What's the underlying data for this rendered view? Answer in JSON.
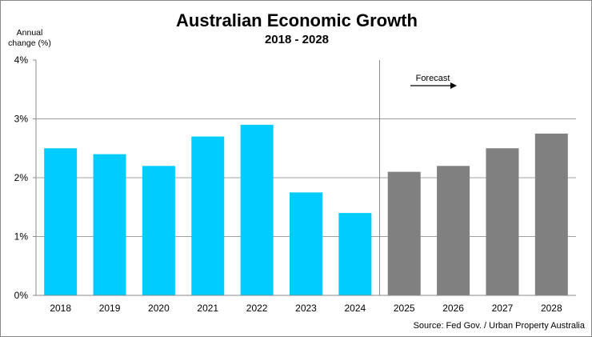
{
  "chart_data": {
    "type": "bar",
    "title": "Australian Economic Growth",
    "subtitle": "2018 - 2028",
    "ylabel": "Annual change (%)",
    "ylabel_lines": [
      "Annual",
      "change (%)"
    ],
    "xlabel": "",
    "ylim": [
      0,
      4
    ],
    "yticks": [
      0,
      1,
      2,
      3,
      4
    ],
    "ytick_labels": [
      "0%",
      "1%",
      "2%",
      "3%",
      "4%"
    ],
    "grid": true,
    "categories": [
      "2018",
      "2019",
      "2020",
      "2021",
      "2022",
      "2023",
      "2024",
      "2025",
      "2026",
      "2027",
      "2028"
    ],
    "values": [
      2.5,
      2.4,
      2.2,
      2.7,
      2.9,
      1.75,
      1.4,
      2.1,
      2.2,
      2.5,
      2.75
    ],
    "forecast_start_index": 7,
    "annotation": "Forecast",
    "source": "Source: Fed Gov. / Urban Property Australia",
    "colors": {
      "actual": "#00CCFF",
      "forecast": "#808080",
      "grid": "#A0A0A0"
    }
  }
}
